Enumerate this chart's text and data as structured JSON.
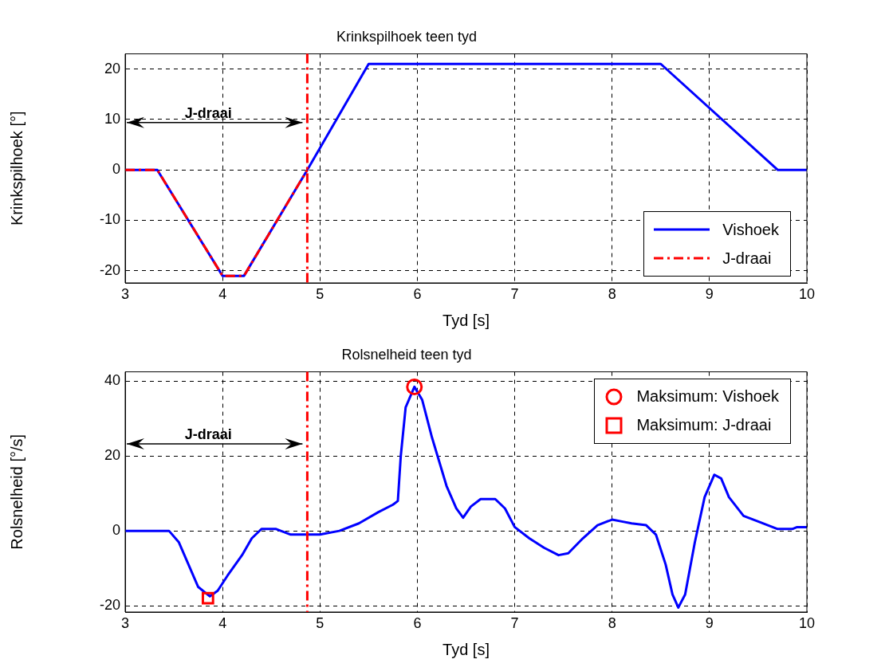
{
  "chart_data": [
    {
      "type": "line",
      "title": "Krinkspilhoek teen tyd",
      "xlabel": "Tyd [s]",
      "ylabel": "Krinkspilhoek [°]",
      "xlim": [
        3,
        10
      ],
      "xticks": [
        3,
        4,
        5,
        6,
        7,
        8,
        9,
        10
      ],
      "ylim": [
        -22.4,
        23
      ],
      "yticks": [
        -20,
        -10,
        0,
        10,
        20
      ],
      "grid": true,
      "legend": "bottom right",
      "series": [
        {
          "name": "Vishoek",
          "color": "#0000ff",
          "line_style": "solid",
          "marker": "none",
          "x": [
            3,
            3.33,
            4.0,
            4.22,
            4.87,
            5.5,
            8.5,
            9.7,
            10
          ],
          "values": [
            0,
            0,
            -21,
            -21,
            0,
            21,
            21,
            0,
            0
          ]
        },
        {
          "name": "J-draai",
          "color": "#ff0000",
          "line_style": "dashed",
          "marker": "none",
          "x": [
            3,
            3.33,
            4.0,
            4.22,
            4.87
          ],
          "values": [
            0,
            0,
            -21,
            -21,
            0
          ]
        }
      ],
      "ref_lines": [
        {
          "axis": "x",
          "value": 4.87,
          "color": "#ff0000",
          "line_style": "dashed"
        }
      ],
      "annotations": [
        "J-draai"
      ]
    },
    {
      "type": "line",
      "title": "Rolsnelheid teen tyd",
      "xlabel": "Tyd [s]",
      "ylabel": "Rolsnelheid [°/s]",
      "xlim": [
        3,
        10
      ],
      "xticks": [
        3,
        4,
        5,
        6,
        7,
        8,
        9,
        10
      ],
      "ylim": [
        -21.7,
        42.5
      ],
      "yticks": [
        -20,
        0,
        20,
        40
      ],
      "grid": true,
      "legend": "top right",
      "series": [
        {
          "color": "#0000ff",
          "line_style": "solid",
          "marker": "none",
          "x": [
            3,
            3.45,
            3.55,
            3.65,
            3.75,
            3.87,
            3.95,
            4.05,
            4.2,
            4.3,
            4.4,
            4.55,
            4.7,
            4.87,
            5.0,
            5.2,
            5.4,
            5.6,
            5.75,
            5.8,
            5.83,
            5.88,
            5.97,
            6.05,
            6.15,
            6.3,
            6.4,
            6.47,
            6.55,
            6.65,
            6.8,
            6.9,
            7.0,
            7.15,
            7.3,
            7.45,
            7.55,
            7.7,
            7.85,
            8.0,
            8.1,
            8.2,
            8.35,
            8.45,
            8.55,
            8.62,
            8.68,
            8.75,
            8.85,
            8.95,
            9.05,
            9.12,
            9.2,
            9.35,
            9.5,
            9.7,
            9.85,
            9.9,
            10
          ],
          "values": [
            0,
            0,
            -3,
            -9,
            -15,
            -17.5,
            -16,
            -12,
            -6.5,
            -2,
            0.5,
            0.5,
            -1,
            -1,
            -1,
            0,
            2,
            5,
            7,
            8,
            20,
            33,
            38.5,
            35,
            25,
            12,
            6,
            3.5,
            6.5,
            8.5,
            8.5,
            6,
            1,
            -2,
            -4.5,
            -6.5,
            -6,
            -2,
            1.5,
            3,
            2.5,
            2,
            1.5,
            -1,
            -9,
            -17,
            -20.5,
            -17,
            -3,
            9,
            15,
            14,
            9,
            4,
            2.5,
            0.5,
            0.5,
            1,
            1
          ]
        },
        {
          "name": "Maksimum: Vishoek",
          "type": "scatter",
          "color": "#ff0000",
          "marker": "circle",
          "x": [
            5.97
          ],
          "values": [
            38.5
          ]
        },
        {
          "name": "Maksimum: J-draai",
          "type": "scatter",
          "color": "#ff0000",
          "marker": "square",
          "x": [
            3.85
          ],
          "values": [
            -18
          ]
        }
      ],
      "ref_lines": [
        {
          "axis": "x",
          "value": 4.87,
          "color": "#ff0000",
          "line_style": "dashed"
        }
      ],
      "annotations": [
        "J-draai"
      ]
    }
  ]
}
